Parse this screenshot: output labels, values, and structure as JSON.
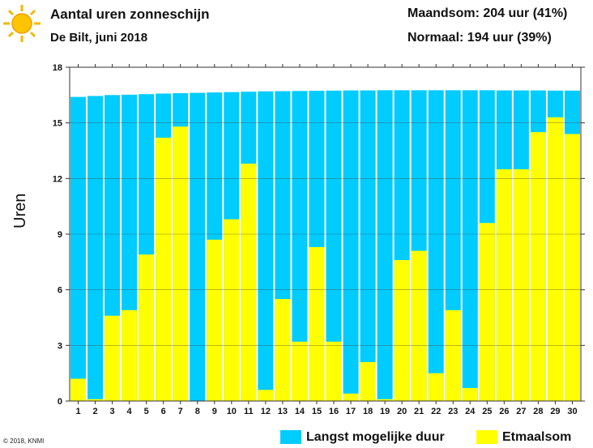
{
  "header": {
    "title": "Aantal uren zonneschijn",
    "subtitle": "De Bilt, juni 2018",
    "month_total": "Maandsom: 204 uur (41%)",
    "normal": "Normaal: 194 uur (39%)"
  },
  "footer": {
    "copyright": "© 2018, KNMI"
  },
  "colors": {
    "max": "#00CCFF",
    "actual": "#FFFF00"
  },
  "chart_data": {
    "type": "bar",
    "title": "Aantal uren zonneschijn",
    "ylabel": "Uren",
    "xlabel": "",
    "ylim": [
      0,
      18
    ],
    "yticks": [
      0,
      3,
      6,
      9,
      12,
      15,
      18
    ],
    "categories": [
      "1",
      "2",
      "3",
      "4",
      "5",
      "6",
      "7",
      "8",
      "9",
      "10",
      "11",
      "12",
      "13",
      "14",
      "15",
      "16",
      "17",
      "18",
      "19",
      "20",
      "21",
      "22",
      "23",
      "24",
      "25",
      "26",
      "27",
      "28",
      "29",
      "30"
    ],
    "legend_position": "bottom-right",
    "grid": true,
    "series": [
      {
        "name": "Langst mogelijke duur",
        "values": [
          16.4,
          16.45,
          16.5,
          16.52,
          16.55,
          16.58,
          16.6,
          16.62,
          16.64,
          16.66,
          16.68,
          16.7,
          16.71,
          16.72,
          16.73,
          16.74,
          16.75,
          16.75,
          16.76,
          16.76,
          16.76,
          16.76,
          16.76,
          16.76,
          16.76,
          16.75,
          16.75,
          16.75,
          16.74,
          16.74
        ]
      },
      {
        "name": "Etmaalsom",
        "values": [
          1.2,
          0.1,
          4.6,
          4.9,
          7.9,
          14.2,
          14.8,
          0,
          8.7,
          9.8,
          12.8,
          0.6,
          5.5,
          3.2,
          8.3,
          3.2,
          0.4,
          2.1,
          0.1,
          7.6,
          8.1,
          1.5,
          4.9,
          0.7,
          9.6,
          12.5,
          12.5,
          14.5,
          15.3,
          14.4
        ]
      }
    ]
  }
}
